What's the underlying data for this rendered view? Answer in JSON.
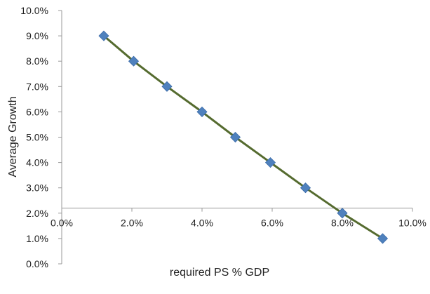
{
  "chart_data": {
    "type": "scatter",
    "title": "",
    "xlabel": "required PS % GDP",
    "ylabel": "Average Growth",
    "xlim": [
      0,
      10
    ],
    "ylim": [
      0,
      10
    ],
    "x_crosses_y_at": 2.2,
    "x_ticks": [
      "0.0%",
      "2.0%",
      "4.0%",
      "6.0%",
      "8.0%",
      "10.0%"
    ],
    "y_ticks": [
      "0.0%",
      "1.0%",
      "2.0%",
      "3.0%",
      "4.0%",
      "5.0%",
      "6.0%",
      "7.0%",
      "8.0%",
      "9.0%",
      "10.0%"
    ],
    "grid": false,
    "legend": "none",
    "series": [
      {
        "x": [
          1.2,
          2.05,
          3.0,
          4.0,
          4.95,
          5.95,
          6.95,
          8.0,
          9.15
        ],
        "y": [
          9.0,
          8.0,
          7.0,
          6.0,
          5.0,
          4.0,
          3.0,
          2.0,
          1.0
        ],
        "line_color": "#556b2f",
        "marker_color": "#4f81bd",
        "marker": "diamond"
      }
    ]
  }
}
